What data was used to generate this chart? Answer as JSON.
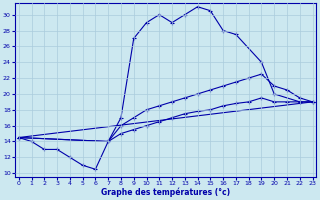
{
  "xlabel": "Graphe des températures (°c)",
  "background_color": "#cce8f0",
  "grid_color": "#aaccdd",
  "line_color": "#0000aa",
  "xlim": [
    0,
    23
  ],
  "ylim": [
    9.5,
    31.5
  ],
  "xticks": [
    0,
    1,
    2,
    3,
    4,
    5,
    6,
    7,
    8,
    9,
    10,
    11,
    12,
    13,
    14,
    15,
    16,
    17,
    18,
    19,
    20,
    21,
    22,
    23
  ],
  "yticks": [
    10,
    12,
    14,
    16,
    18,
    20,
    22,
    24,
    26,
    28,
    30
  ],
  "curve1_x": [
    0,
    1,
    2,
    3,
    4,
    5,
    6,
    7,
    8,
    9,
    10,
    11,
    12,
    13,
    14,
    15,
    16,
    17,
    19,
    20,
    22,
    23
  ],
  "curve1_y": [
    14.5,
    14,
    13,
    13,
    12,
    11,
    10.5,
    14,
    17,
    27,
    29,
    30,
    29,
    30,
    31,
    30.5,
    28,
    27.5,
    24,
    20,
    19,
    19
  ],
  "curve2_x": [
    0,
    7,
    8,
    9,
    10,
    11,
    12,
    13,
    14,
    15,
    16,
    17,
    18,
    19,
    20,
    21,
    22,
    23
  ],
  "curve2_y": [
    14.5,
    14,
    16,
    17,
    18,
    18.5,
    19,
    19.5,
    20,
    20.5,
    21,
    21.5,
    22,
    22.5,
    21,
    20.5,
    19.5,
    19
  ],
  "curve3_x": [
    0,
    7,
    8,
    9,
    10,
    11,
    12,
    13,
    14,
    15,
    16,
    17,
    18,
    19,
    20,
    21,
    22,
    23
  ],
  "curve3_y": [
    14.5,
    14,
    15,
    15.5,
    16,
    16.5,
    17,
    17.5,
    17.8,
    18,
    18.5,
    18.8,
    19,
    19.5,
    19,
    19,
    19,
    19
  ],
  "curve4_x": [
    0,
    23
  ],
  "curve4_y": [
    14.5,
    19
  ]
}
